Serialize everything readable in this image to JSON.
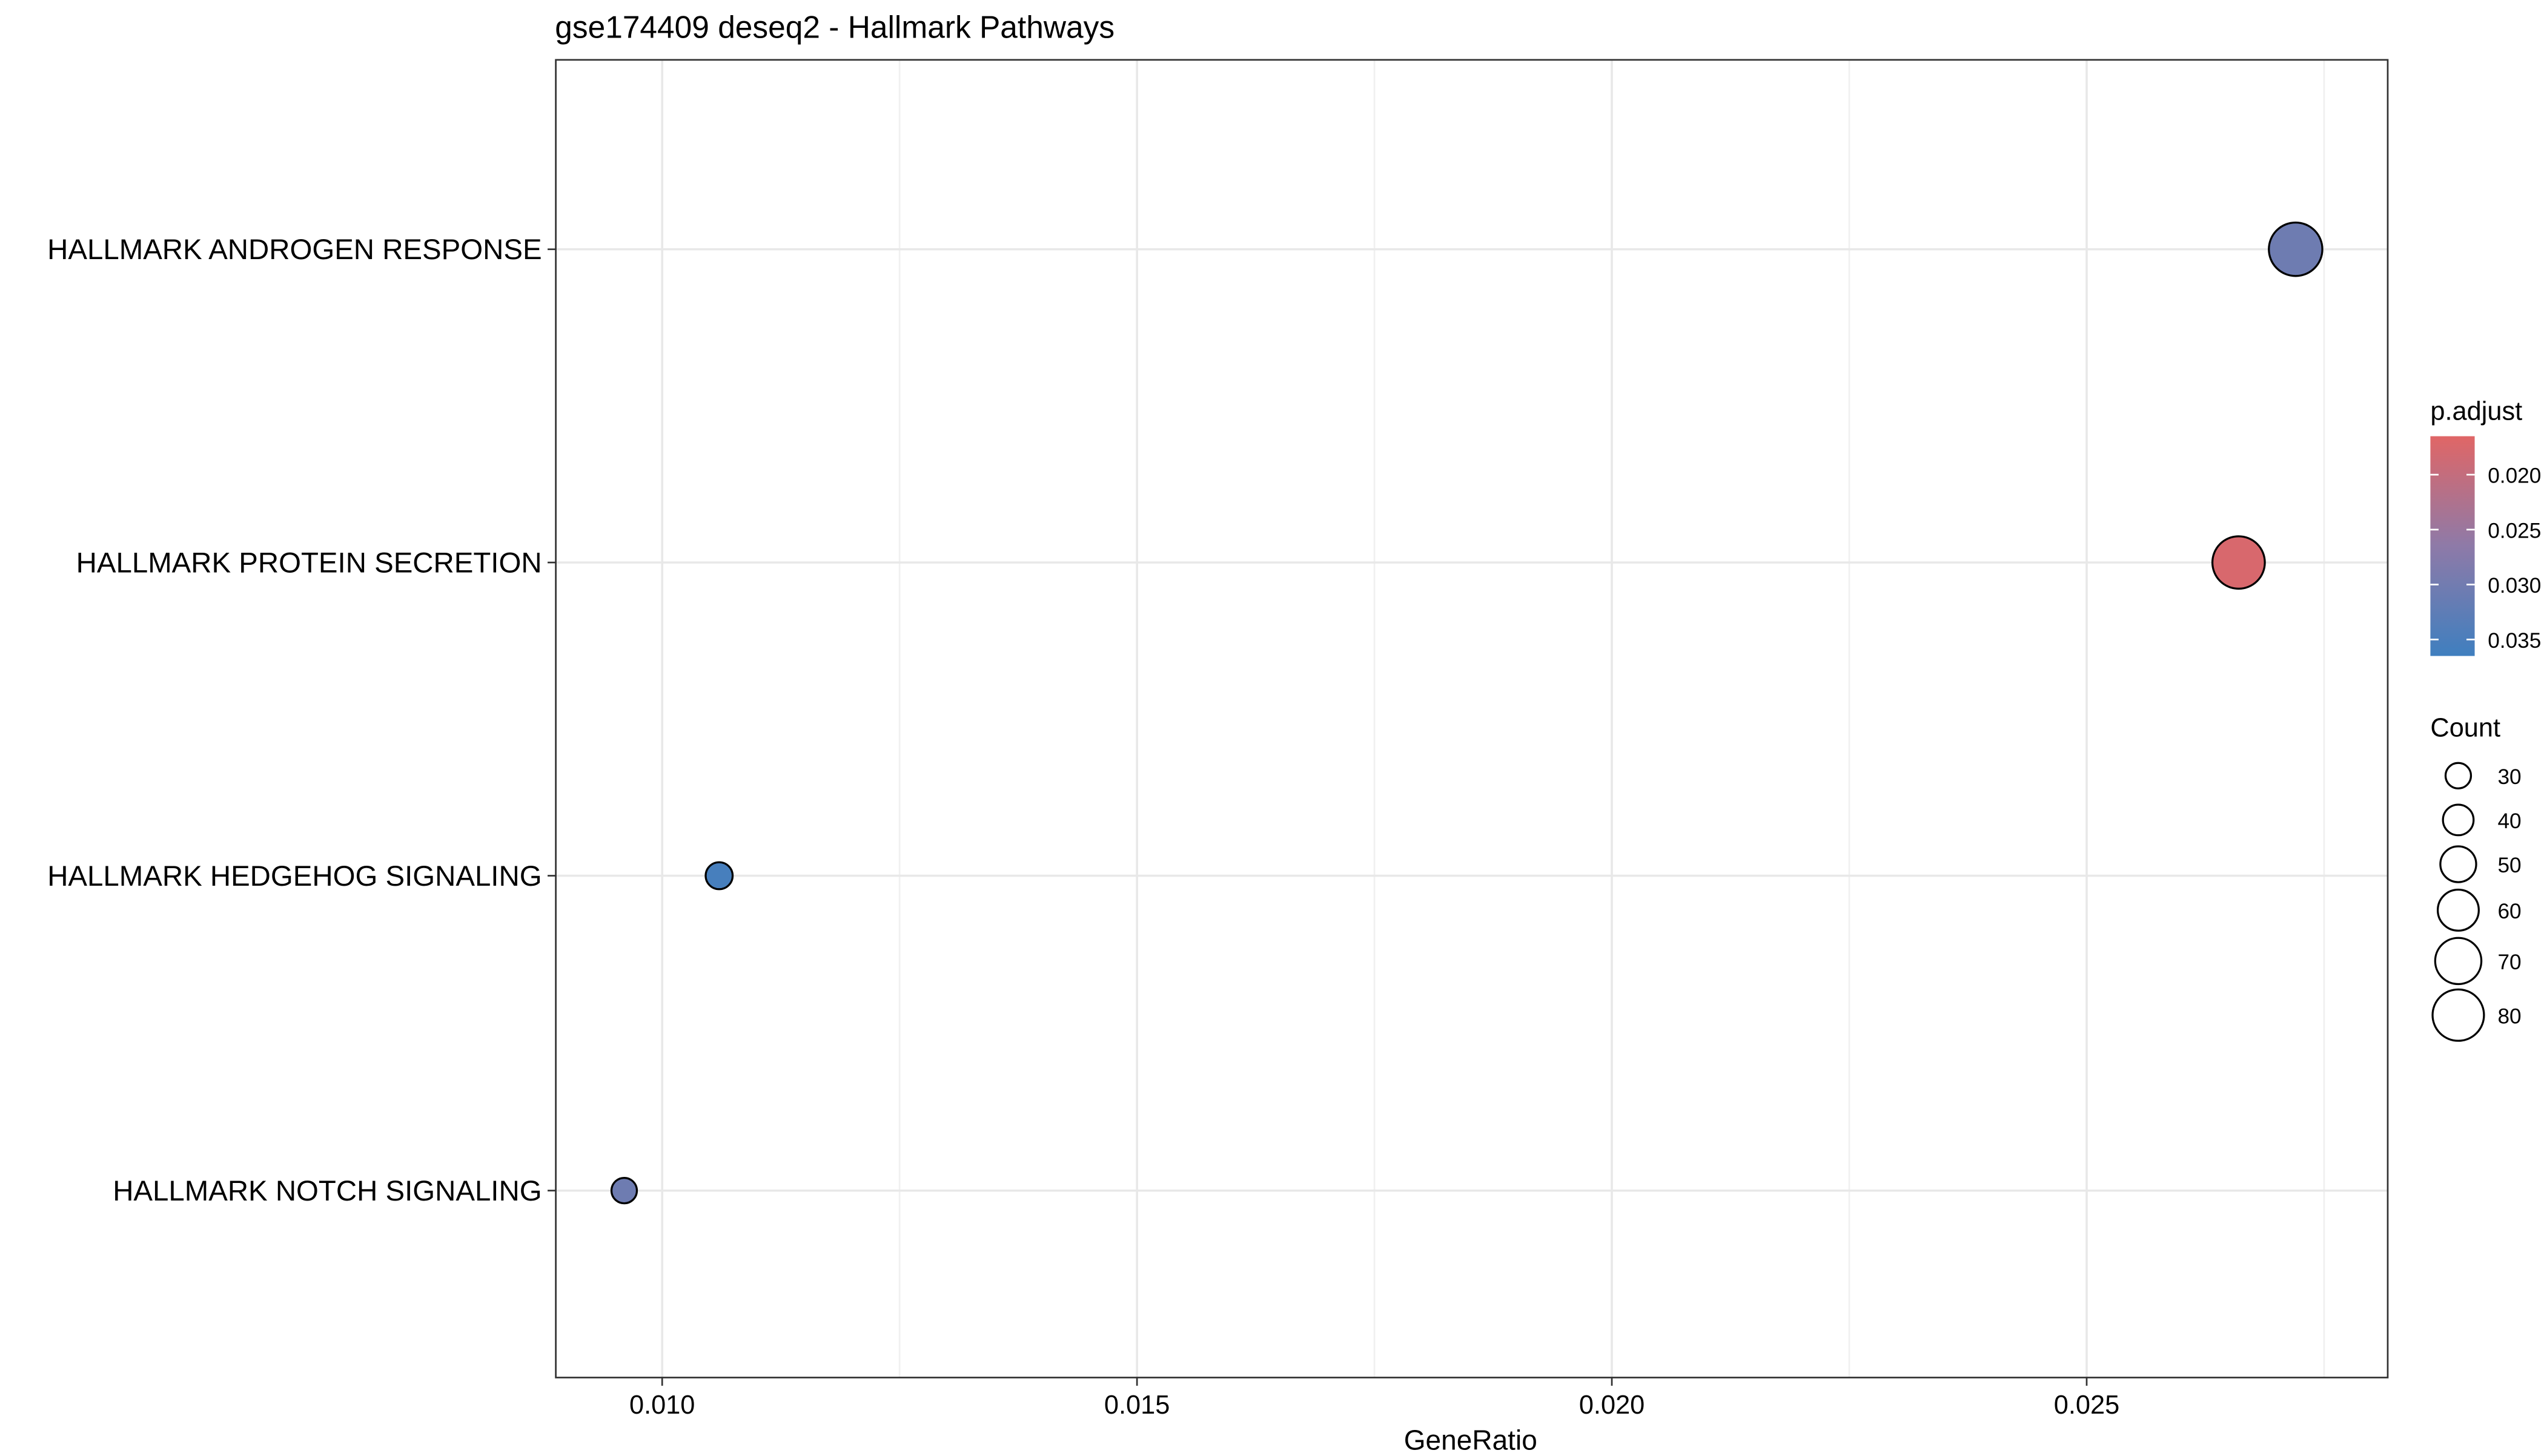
{
  "chart_data": {
    "type": "scatter",
    "title": "gse174409 deseq2 - Hallmark Pathways",
    "xlabel": "GeneRatio",
    "ylabel": "",
    "xlim": [
      0.00888,
      0.02817
    ],
    "x_ticks": [
      0.01,
      0.015,
      0.02,
      0.025
    ],
    "x_tick_labels": [
      "0.010",
      "0.015",
      "0.020",
      "0.025"
    ],
    "grid": true,
    "categories": [
      "HALLMARK ANDROGEN RESPONSE",
      "HALLMARK PROTEIN SECRETION",
      "HALLMARK HEDGEHOG SIGNALING",
      "HALLMARK NOTCH SIGNALING"
    ],
    "points": [
      {
        "category": "HALLMARK ANDROGEN RESPONSE",
        "x": 0.0272,
        "count": 84,
        "p_adjust": 0.0305
      },
      {
        "category": "HALLMARK PROTEIN SECRETION",
        "x": 0.0266,
        "count": 82,
        "p_adjust": 0.0175
      },
      {
        "category": "HALLMARK HEDGEHOG SIGNALING",
        "x": 0.0106,
        "count": 33,
        "p_adjust": 0.0355
      },
      {
        "category": "HALLMARK NOTCH SIGNALING",
        "x": 0.0096,
        "count": 30,
        "p_adjust": 0.0305
      }
    ],
    "color_legend": {
      "title": "p.adjust",
      "range": [
        0.0165,
        0.0365
      ],
      "ticks": [
        0.02,
        0.025,
        0.03,
        0.035
      ],
      "tick_labels": [
        "0.020",
        "0.025",
        "0.030",
        "0.035"
      ],
      "low_value_color": "#e06666",
      "mid_color": "#8e7aa8",
      "high_value_color": "#3f7fbf",
      "position": "right"
    },
    "size_legend": {
      "title": "Count",
      "values": [
        30,
        40,
        50,
        60,
        70,
        80
      ],
      "labels": [
        "30",
        "40",
        "50",
        "60",
        "70",
        "80"
      ],
      "position": "right"
    }
  }
}
